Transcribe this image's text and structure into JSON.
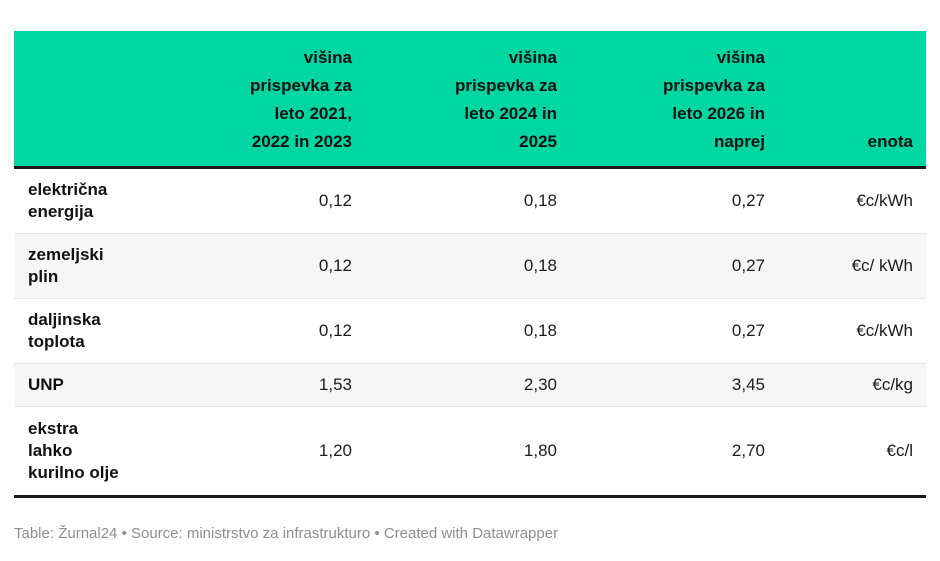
{
  "colors": {
    "header_bg": "#00d6a2",
    "header_text": "#111111",
    "dark_border": "#1a1a1a",
    "row_separator": "#e6e6e6",
    "striped_row_bg": "#f6f6f6",
    "footer_text": "#8e8e8e"
  },
  "table": {
    "columns": [
      {
        "label": ""
      },
      {
        "label": "višina\nprispevka za\nleto 2021,\n2022 in 2023"
      },
      {
        "label": "višina\nprispevka za\nleto 2024 in\n2025"
      },
      {
        "label": "višina\nprispevka za\nleto 2026 in\nnaprej"
      },
      {
        "label": "enota"
      }
    ],
    "rows": [
      {
        "label": "električna\nenergija",
        "v1": "0,12",
        "v2": "0,18",
        "v3": "0,27",
        "unit": "€c/kWh"
      },
      {
        "label": "zemeljski\nplin",
        "v1": "0,12",
        "v2": "0,18",
        "v3": "0,27",
        "unit": "€c/ kWh"
      },
      {
        "label": "daljinska\ntoplota",
        "v1": "0,12",
        "v2": "0,18",
        "v3": "0,27",
        "unit": "€c/kWh"
      },
      {
        "label": "UNP",
        "v1": "1,53",
        "v2": "2,30",
        "v3": "3,45",
        "unit": "€c/kg"
      },
      {
        "label": "ekstra\nlahko\nkurilno olje",
        "v1": "1,20",
        "v2": "1,80",
        "v3": "2,70",
        "unit": "€c/l"
      }
    ]
  },
  "footer": {
    "text": "Table: Žurnal24 • Source: ministrstvo za infrastrukturo • Created with Datawrapper"
  },
  "chart_data": {
    "type": "table",
    "columns": [
      "",
      "višina prispevka za leto 2021, 2022 in 2023",
      "višina prispevka za leto 2024 in 2025",
      "višina prispevka za leto 2026 in naprej",
      "enota"
    ],
    "rows": [
      [
        "električna energija",
        "0,12",
        "0,18",
        "0,27",
        "€c/kWh"
      ],
      [
        "zemeljski plin",
        "0,12",
        "0,18",
        "0,27",
        "€c/ kWh"
      ],
      [
        "daljinska toplota",
        "0,12",
        "0,18",
        "0,27",
        "€c/kWh"
      ],
      [
        "UNP",
        "1,53",
        "2,30",
        "3,45",
        "€c/kg"
      ],
      [
        "ekstra lahko kurilno olje",
        "1,20",
        "1,80",
        "2,70",
        "€c/l"
      ]
    ],
    "footer": "Table: Žurnal24 • Source: ministrstvo za infrastrukturo • Created with Datawrapper"
  }
}
